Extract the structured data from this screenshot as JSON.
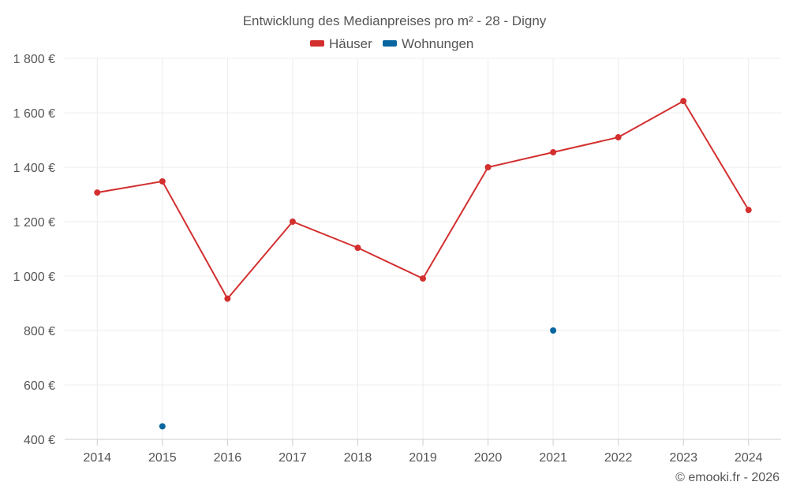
{
  "chart_data": {
    "type": "line",
    "title": "Entwicklung des Medianpreises pro m² - 28 - Digny",
    "categories": [
      "2014",
      "2015",
      "2016",
      "2017",
      "2018",
      "2019",
      "2020",
      "2021",
      "2022",
      "2023",
      "2024"
    ],
    "series": [
      {
        "name": "Häuser",
        "color": "#d32f2f",
        "values": [
          1307,
          1348,
          917,
          1200,
          1104,
          991,
          1400,
          1455,
          1510,
          1643,
          1243
        ]
      },
      {
        "name": "Wohnungen",
        "color": "#0a66a0",
        "values": [
          null,
          448,
          null,
          null,
          null,
          null,
          null,
          800,
          null,
          null,
          null
        ]
      }
    ],
    "y_ticks": [
      "400 €",
      "600 €",
      "800 €",
      "1 000 €",
      "1 200 €",
      "1 400 €",
      "1 600 €",
      "1 800 €"
    ],
    "ylim": [
      400,
      1800
    ],
    "xlabel": "",
    "ylabel": "",
    "grid": true,
    "legend": "top-center",
    "credit": "© emooki.fr - 2026"
  }
}
